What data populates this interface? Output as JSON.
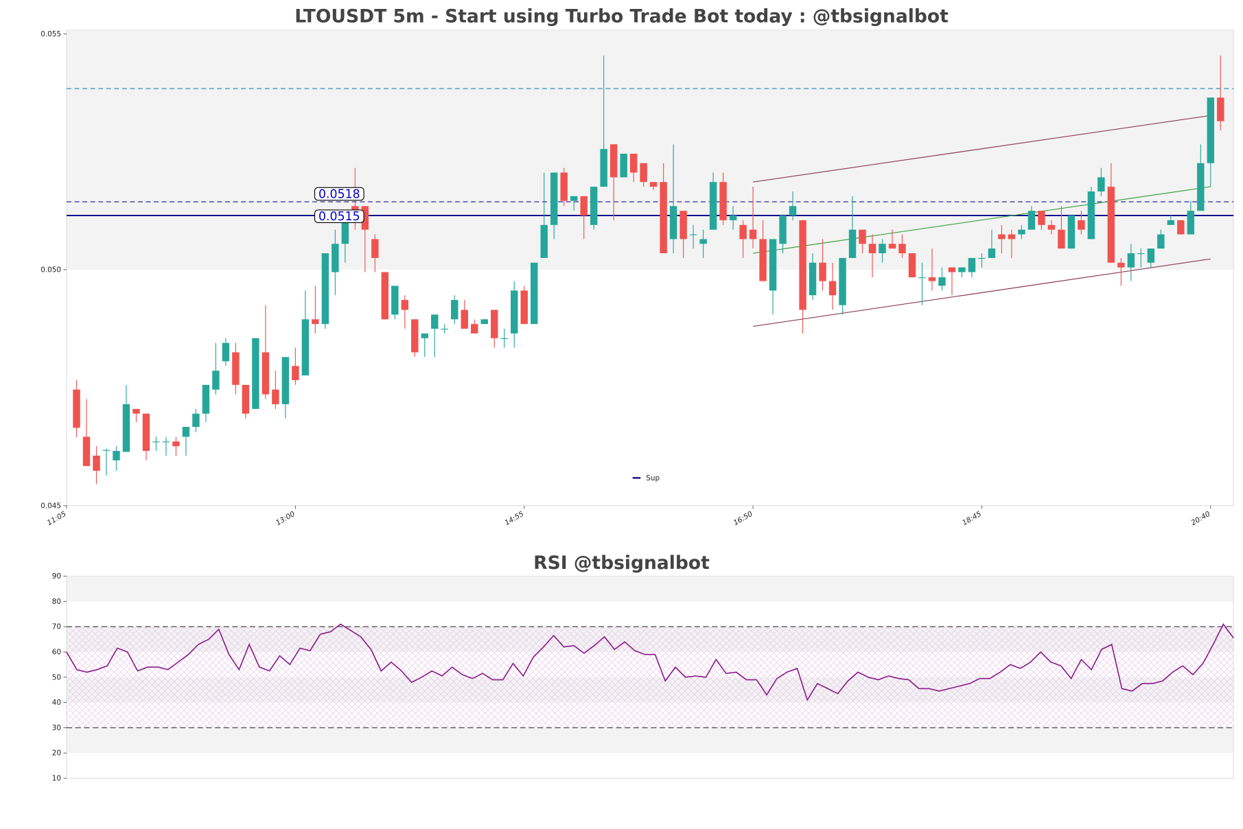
{
  "chart_data": [
    {
      "type": "candlestick",
      "title": "LTOUSDT 5m - Start using Turbo Trade Bot today : @tbsignalbot",
      "x": [
        670,
        675,
        680,
        685,
        690,
        695,
        700,
        705,
        710,
        715,
        720,
        725,
        730,
        735,
        740,
        745,
        750,
        755,
        760,
        765,
        770,
        775,
        780,
        785,
        790,
        795,
        800,
        805,
        810,
        815,
        820,
        825,
        830,
        835,
        840,
        845,
        850,
        855,
        860,
        865,
        870,
        875,
        880,
        885,
        890,
        895,
        900,
        905,
        910,
        915,
        920,
        925,
        930,
        935,
        940,
        945,
        950,
        955,
        960,
        965,
        970,
        975,
        980,
        985,
        990,
        995,
        1000,
        1005,
        1010,
        1015,
        1020,
        1025,
        1030,
        1035,
        1040,
        1045,
        1050,
        1055,
        1060,
        1065,
        1070,
        1075,
        1080,
        1085,
        1090,
        1095,
        1100,
        1105,
        1110,
        1115,
        1120,
        1125,
        1130,
        1135,
        1140,
        1145,
        1150,
        1155,
        1160,
        1165,
        1170,
        1175,
        1180,
        1185,
        1190,
        1195,
        1200,
        1205,
        1210,
        1215,
        1220,
        1225,
        1230,
        1235,
        1240,
        1245
      ],
      "open": [
        0.04746,
        0.04646,
        0.04606,
        0.04618,
        0.04596,
        0.04614,
        0.04705,
        0.04695,
        0.04636,
        0.04636,
        0.04636,
        0.04646,
        0.04667,
        0.04695,
        0.04746,
        0.04806,
        0.04825,
        0.04756,
        0.04705,
        0.04825,
        0.04746,
        0.04715,
        0.04796,
        0.04776,
        0.04895,
        0.04885,
        0.04995,
        0.05055,
        0.05135,
        0.05135,
        0.05065,
        0.04995,
        0.04905,
        0.04936,
        0.04895,
        0.04855,
        0.04875,
        0.04875,
        0.04895,
        0.04915,
        0.04885,
        0.04885,
        0.04915,
        0.04855,
        0.04865,
        0.04956,
        0.04885,
        0.05025,
        0.05095,
        0.05206,
        0.05146,
        0.05156,
        0.05095,
        0.05176,
        0.05266,
        0.05196,
        0.05246,
        0.05226,
        0.05186,
        0.05186,
        0.05065,
        0.05125,
        0.05075,
        0.05055,
        0.05085,
        0.05186,
        0.05105,
        0.05095,
        0.05085,
        0.05065,
        0.04956,
        0.05055,
        0.05115,
        0.05105,
        0.04946,
        0.05015,
        0.04976,
        0.04925,
        0.05025,
        0.05085,
        0.05055,
        0.05035,
        0.05055,
        0.05055,
        0.05035,
        0.04984,
        0.04984,
        0.04966,
        0.05005,
        0.04995,
        0.04995,
        0.05025,
        0.05025,
        0.05075,
        0.05075,
        0.05075,
        0.05085,
        0.05125,
        0.05095,
        0.05085,
        0.05045,
        0.05105,
        0.05065,
        0.05166,
        0.05176,
        0.05015,
        0.05005,
        0.05035,
        0.05015,
        0.05045,
        0.05095,
        0.05105,
        0.05075,
        0.05125,
        0.05226,
        0.05365
      ],
      "high": [
        0.04766,
        0.04726,
        0.04626,
        0.04621,
        0.04626,
        0.04756,
        0.04705,
        0.04695,
        0.04646,
        0.04646,
        0.04646,
        0.04667,
        0.04705,
        0.04756,
        0.04845,
        0.04855,
        0.04845,
        0.04756,
        0.04855,
        0.04925,
        0.04786,
        0.04815,
        0.04835,
        0.04956,
        0.04966,
        0.05035,
        0.05085,
        0.05115,
        0.05216,
        0.05135,
        0.05075,
        0.04995,
        0.04966,
        0.04946,
        0.04895,
        0.04865,
        0.04905,
        0.04885,
        0.04946,
        0.04936,
        0.04895,
        0.04895,
        0.04915,
        0.04875,
        0.04976,
        0.04966,
        0.05015,
        0.05206,
        0.05206,
        0.05216,
        0.05156,
        0.05156,
        0.05176,
        0.05454,
        0.05266,
        0.05246,
        0.05246,
        0.05226,
        0.05186,
        0.05226,
        0.05266,
        0.05125,
        0.05095,
        0.05085,
        0.05206,
        0.05206,
        0.05135,
        0.05105,
        0.05176,
        0.05105,
        0.05065,
        0.05115,
        0.05166,
        0.05105,
        0.05035,
        0.05065,
        0.05015,
        0.05025,
        0.05156,
        0.05085,
        0.05075,
        0.05065,
        0.05085,
        0.05075,
        0.05035,
        0.05015,
        0.05045,
        0.05005,
        0.05005,
        0.05005,
        0.05025,
        0.05035,
        0.05085,
        0.05095,
        0.05085,
        0.05095,
        0.05135,
        0.05125,
        0.05105,
        0.05135,
        0.05115,
        0.05125,
        0.05176,
        0.05216,
        0.05226,
        0.05025,
        0.05055,
        0.05045,
        0.05045,
        0.05085,
        0.05115,
        0.05105,
        0.05146,
        0.05266,
        0.05365,
        0.05454
      ],
      "low": [
        0.04645,
        0.04584,
        0.04546,
        0.04564,
        0.04574,
        0.04614,
        0.04677,
        0.04596,
        0.04616,
        0.04606,
        0.04606,
        0.04606,
        0.04656,
        0.04677,
        0.04736,
        0.04796,
        0.04736,
        0.04685,
        0.04705,
        0.04726,
        0.04705,
        0.04685,
        0.04756,
        0.04776,
        0.04865,
        0.04875,
        0.04946,
        0.05015,
        0.05085,
        0.04995,
        0.04995,
        0.04895,
        0.04895,
        0.04875,
        0.04815,
        0.04815,
        0.04815,
        0.04865,
        0.04885,
        0.04875,
        0.04865,
        0.04885,
        0.04835,
        0.04835,
        0.04835,
        0.04885,
        0.04885,
        0.05025,
        0.05065,
        0.05135,
        0.05125,
        0.05065,
        0.05085,
        0.05176,
        0.05105,
        0.05196,
        0.05186,
        0.05176,
        0.05169,
        0.05035,
        0.05035,
        0.05025,
        0.05045,
        0.05025,
        0.05085,
        0.05095,
        0.05085,
        0.05025,
        0.05045,
        0.04976,
        0.04905,
        0.05035,
        0.05105,
        0.04865,
        0.04936,
        0.04956,
        0.04915,
        0.04905,
        0.05025,
        0.05035,
        0.04984,
        0.05015,
        0.05045,
        0.05025,
        0.04984,
        0.04925,
        0.04956,
        0.04956,
        0.04946,
        0.04984,
        0.04984,
        0.05005,
        0.05025,
        0.05035,
        0.05025,
        0.05065,
        0.05085,
        0.05085,
        0.05075,
        0.05045,
        0.05045,
        0.05075,
        0.05065,
        0.05156,
        0.05015,
        0.04966,
        0.04976,
        0.05005,
        0.05005,
        0.05045,
        0.05095,
        0.05075,
        0.05075,
        0.05125,
        0.05176,
        0.05295
      ],
      "close": [
        0.04665,
        0.04584,
        0.04574,
        0.04618,
        0.04616,
        0.04715,
        0.04695,
        0.04616,
        0.04636,
        0.04636,
        0.04626,
        0.04667,
        0.04695,
        0.04756,
        0.04786,
        0.04845,
        0.04756,
        0.04695,
        0.04855,
        0.04736,
        0.04715,
        0.04815,
        0.04766,
        0.04895,
        0.04885,
        0.05035,
        0.05055,
        0.05105,
        0.05115,
        0.05085,
        0.05025,
        0.04895,
        0.04966,
        0.04915,
        0.04825,
        0.04865,
        0.04905,
        0.04875,
        0.04936,
        0.04875,
        0.04865,
        0.04895,
        0.04855,
        0.04855,
        0.04956,
        0.04885,
        0.05015,
        0.05095,
        0.05206,
        0.05146,
        0.05156,
        0.05115,
        0.05176,
        0.05256,
        0.05196,
        0.05246,
        0.05206,
        0.05186,
        0.05176,
        0.05035,
        0.05135,
        0.05065,
        0.05075,
        0.05065,
        0.05186,
        0.05105,
        0.05115,
        0.05065,
        0.05065,
        0.04976,
        0.05065,
        0.05115,
        0.05135,
        0.04915,
        0.05015,
        0.04976,
        0.04946,
        0.05025,
        0.05085,
        0.05055,
        0.05035,
        0.05055,
        0.05045,
        0.05035,
        0.04984,
        0.04984,
        0.04976,
        0.04984,
        0.04995,
        0.05005,
        0.05025,
        0.05025,
        0.05045,
        0.05065,
        0.05065,
        0.05085,
        0.05125,
        0.05095,
        0.05085,
        0.05045,
        0.05115,
        0.05085,
        0.05166,
        0.05196,
        0.05015,
        0.05005,
        0.05035,
        0.05035,
        0.05045,
        0.05075,
        0.05105,
        0.05075,
        0.05125,
        0.05226,
        0.05365,
        0.05315
      ],
      "up_color": "#26a69a",
      "down_color": "#ef5350",
      "xlim": [
        665,
        1251.5
      ],
      "xticks": [
        {
          "value": 665,
          "label": "11:05"
        },
        {
          "value": 780,
          "label": "13:00"
        },
        {
          "value": 895,
          "label": "14:55"
        },
        {
          "value": 1010,
          "label": "16:50"
        },
        {
          "value": 1125,
          "label": "18:45"
        },
        {
          "value": 1240,
          "label": "20:40"
        }
      ],
      "ylim": [
        0.045,
        0.05508
      ],
      "yticks": [
        0.045,
        {
          "value": 0.05,
          "label": "0.050"
        },
        0.055
      ],
      "shaded_band": [
        0.05,
        0.05508
      ],
      "hlines": [
        {
          "value": 0.05384,
          "color": "#4aa3c8",
          "dash": true
        },
        {
          "value": 0.05144,
          "color": "#3a3ab0",
          "dash": true
        }
      ],
      "support": {
        "name": "Sup",
        "value": 0.05115,
        "color": "#00008b"
      },
      "annotations": [
        "0.0518",
        "0.0515"
      ],
      "trendlines": [
        {
          "x": [
            1010,
            1240
          ],
          "y": [
            0.05186,
            0.05327
          ],
          "color": "#8b3a50"
        },
        {
          "x": [
            1010,
            1240
          ],
          "y": [
            0.0488,
            0.05023
          ],
          "color": "#8b3a50"
        },
        {
          "x": [
            1010,
            1240
          ],
          "y": [
            0.05035,
            0.05176
          ],
          "color": "#3aa040"
        }
      ],
      "legend": "lower center"
    },
    {
      "type": "line",
      "title": "RSI @tbsignalbot",
      "values": [
        60,
        53,
        52,
        53,
        54.5,
        61.5,
        60,
        52.5,
        54,
        54,
        53,
        56,
        59,
        63,
        65,
        69,
        59,
        53,
        63,
        54,
        52.5,
        58.5,
        55,
        61.5,
        60.5,
        67,
        68,
        71,
        68.5,
        66,
        61,
        52.5,
        56,
        52.5,
        48,
        50,
        52.5,
        50.5,
        54,
        51,
        49.5,
        51.5,
        49,
        49,
        55.5,
        50.5,
        58,
        62,
        66.5,
        62,
        62.5,
        59.5,
        62.5,
        66,
        61,
        64,
        60.5,
        59,
        59,
        48.5,
        54,
        50,
        50.5,
        50,
        57,
        51.5,
        52,
        49,
        49,
        43,
        49.5,
        52,
        53.5,
        41,
        47.5,
        45.5,
        43.5,
        48.5,
        52,
        50,
        49,
        50.5,
        49.5,
        49,
        45.5,
        45.5,
        44.5,
        45.5,
        46.5,
        47.5,
        49.5,
        49.5,
        52,
        55,
        53.5,
        56,
        60,
        56,
        54.5,
        49.5,
        57,
        53,
        61,
        63,
        45.5,
        44.5,
        47.5,
        47.5,
        48.5,
        52,
        54.5,
        51,
        55.5,
        63,
        71,
        65.5
      ],
      "color": "#8b1a8b",
      "ylim": [
        10,
        90
      ],
      "yticks": [
        10,
        20,
        30,
        40,
        50,
        60,
        70,
        80,
        90
      ],
      "shaded_bands": [
        [
          80,
          90
        ],
        [
          60,
          70
        ],
        [
          40,
          50
        ],
        [
          20,
          30
        ]
      ],
      "hatch": [
        30,
        70
      ],
      "hlines": [
        70,
        30
      ]
    }
  ]
}
